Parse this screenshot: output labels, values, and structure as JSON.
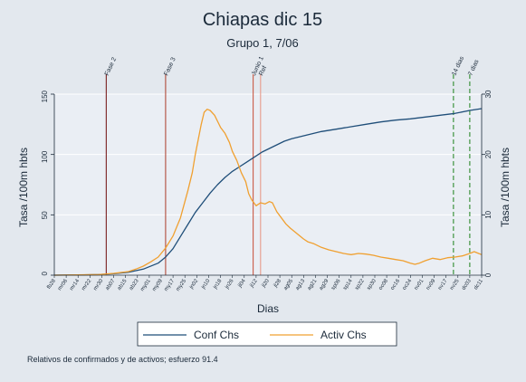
{
  "chart_data": {
    "type": "line",
    "title": "Chiapas dic 15",
    "subtitle": "Grupo 1,  7/06",
    "xlabel": "Dias",
    "ylabel_left": "Tasa /100m hbts",
    "ylabel_right": "Tasa /100m hbts",
    "ylim_left": [
      0,
      150
    ],
    "ylim_right": [
      0,
      30
    ],
    "yticks_left": [
      "0",
      "50",
      "100",
      "150"
    ],
    "yticks_right": [
      "0",
      "10",
      "20",
      "30"
    ],
    "x_ticks": [
      "fb28",
      "mr06",
      "mr14",
      "mr22",
      "mr30",
      "ab07",
      "ab15",
      "ab23",
      "my01",
      "my09",
      "my17",
      "my25",
      "jn02",
      "jn10",
      "jn18",
      "jn26",
      "jl04",
      "jl12",
      "jl20",
      "jl28",
      "ag05",
      "ag13",
      "ag21",
      "ag29",
      "sp06",
      "sp14",
      "sp22",
      "sp30",
      "oc08",
      "oc16",
      "oc24",
      "nv01",
      "nv09",
      "nv17",
      "nv25",
      "dc03",
      "dc11"
    ],
    "x_start_index": 0,
    "x_end_index": 288,
    "grid": true,
    "legend_position": "bottom",
    "series": [
      {
        "name": "Conf Chs",
        "axis": "left",
        "color": "#1f4e79",
        "points": [
          [
            0,
            0
          ],
          [
            20,
            0.2
          ],
          [
            30,
            0.5
          ],
          [
            40,
            1.2
          ],
          [
            50,
            2.5
          ],
          [
            60,
            5
          ],
          [
            70,
            10
          ],
          [
            75,
            15
          ],
          [
            80,
            22
          ],
          [
            85,
            32
          ],
          [
            90,
            42
          ],
          [
            95,
            52
          ],
          [
            100,
            60
          ],
          [
            105,
            68
          ],
          [
            110,
            75
          ],
          [
            115,
            81
          ],
          [
            120,
            86
          ],
          [
            125,
            90
          ],
          [
            130,
            94
          ],
          [
            135,
            98
          ],
          [
            140,
            102
          ],
          [
            145,
            105
          ],
          [
            150,
            108
          ],
          [
            155,
            111
          ],
          [
            160,
            113
          ],
          [
            170,
            116
          ],
          [
            180,
            119
          ],
          [
            190,
            121
          ],
          [
            200,
            123
          ],
          [
            210,
            125
          ],
          [
            220,
            127
          ],
          [
            230,
            128.5
          ],
          [
            240,
            129.5
          ],
          [
            250,
            131
          ],
          [
            260,
            132.5
          ],
          [
            270,
            134
          ],
          [
            280,
            136.5
          ],
          [
            288,
            138
          ]
        ]
      },
      {
        "name": "Activ Chs",
        "axis": "right",
        "color": "#f0a030",
        "points": [
          [
            0,
            0
          ],
          [
            30,
            0.1
          ],
          [
            40,
            0.3
          ],
          [
            50,
            0.6
          ],
          [
            55,
            1.0
          ],
          [
            60,
            1.5
          ],
          [
            65,
            2.2
          ],
          [
            70,
            3.0
          ],
          [
            75,
            4.5
          ],
          [
            80,
            6.5
          ],
          [
            85,
            9.5
          ],
          [
            90,
            14
          ],
          [
            93,
            17
          ],
          [
            95,
            20
          ],
          [
            97,
            22.5
          ],
          [
            99,
            25
          ],
          [
            101,
            27
          ],
          [
            103,
            27.5
          ],
          [
            105,
            27.3
          ],
          [
            108,
            26.5
          ],
          [
            110,
            25.5
          ],
          [
            112,
            24.5
          ],
          [
            115,
            23.5
          ],
          [
            118,
            22
          ],
          [
            120,
            20.5
          ],
          [
            123,
            19
          ],
          [
            126,
            17
          ],
          [
            129,
            15.5
          ],
          [
            131,
            13.5
          ],
          [
            133,
            12.5
          ],
          [
            136,
            11.5
          ],
          [
            139,
            12
          ],
          [
            142,
            11.8
          ],
          [
            145,
            12.2
          ],
          [
            147,
            12
          ],
          [
            150,
            10.5
          ],
          [
            153,
            9.5
          ],
          [
            156,
            8.5
          ],
          [
            159,
            7.8
          ],
          [
            162,
            7.2
          ],
          [
            165,
            6.6
          ],
          [
            168,
            6
          ],
          [
            171,
            5.5
          ],
          [
            175,
            5.2
          ],
          [
            180,
            4.6
          ],
          [
            185,
            4.2
          ],
          [
            190,
            3.9
          ],
          [
            195,
            3.6
          ],
          [
            200,
            3.4
          ],
          [
            205,
            3.6
          ],
          [
            210,
            3.5
          ],
          [
            215,
            3.3
          ],
          [
            220,
            3.0
          ],
          [
            225,
            2.8
          ],
          [
            230,
            2.6
          ],
          [
            235,
            2.4
          ],
          [
            240,
            2.0
          ],
          [
            243,
            1.8
          ],
          [
            246,
            2.0
          ],
          [
            250,
            2.4
          ],
          [
            255,
            2.8
          ],
          [
            260,
            2.6
          ],
          [
            265,
            2.9
          ],
          [
            270,
            3.0
          ],
          [
            275,
            3.2
          ],
          [
            280,
            3.6
          ],
          [
            283,
            3.9
          ],
          [
            286,
            3.6
          ],
          [
            288,
            3.4
          ]
        ]
      }
    ],
    "vlines": [
      {
        "x": 35,
        "label": "Fase 2",
        "color": "#7a1f1f",
        "style": "solid"
      },
      {
        "x": 75,
        "label": "Fase 3",
        "color": "#b04a3a",
        "style": "solid"
      },
      {
        "x": 134,
        "label": "Junio 1",
        "color": "#c95a45",
        "style": "solid"
      },
      {
        "x": 139,
        "label": "Ref",
        "color": "#e89a8a",
        "style": "solid"
      },
      {
        "x": 269,
        "label": "14 dias",
        "color": "#2e8b2e",
        "style": "dashed"
      },
      {
        "x": 280,
        "label": "7 dias",
        "color": "#2e8b2e",
        "style": "dashed"
      }
    ]
  },
  "note": "Relativos de confirmados y de activos; esfuerzo 91.4",
  "colors": {
    "background": "#e3e8ee",
    "plot_background": "#eaeef4",
    "grid": "#ffffff",
    "text": "#1b2a3a"
  }
}
